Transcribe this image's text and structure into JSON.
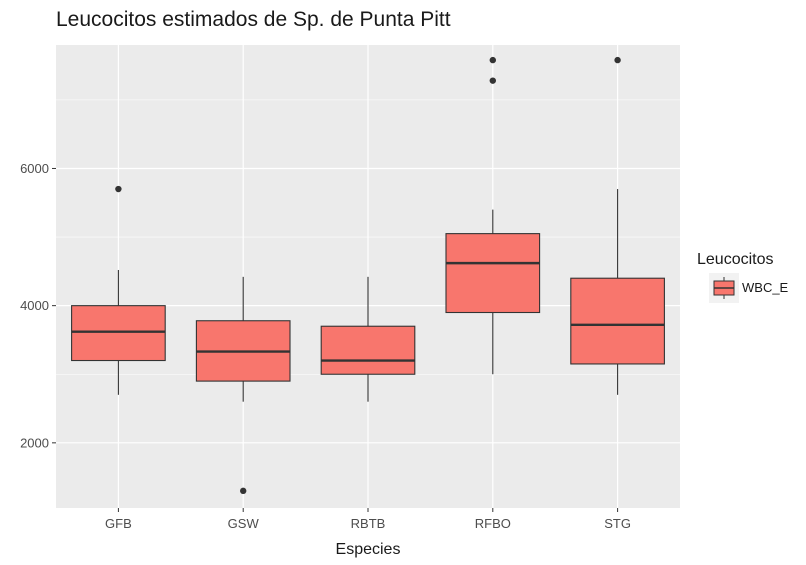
{
  "chart_data": {
    "type": "boxplot",
    "title": "Leucocitos estimados de Sp. de Punta Pitt",
    "xlabel": "Especies",
    "ylabel": "",
    "ylim": [
      1050,
      7800
    ],
    "yticks": [
      2000,
      4000,
      6000
    ],
    "ytick_labels": [
      "2000",
      "4000",
      "6000"
    ],
    "grid": true,
    "legend": {
      "title": "Leucocitos",
      "placement": "right",
      "entries": [
        "WBC_E"
      ]
    },
    "colors": {
      "fill": "#F8766D",
      "panel": "#EBEBEB",
      "grid": "#FFFFFF",
      "stroke": "#333333"
    },
    "series": [
      {
        "name": "WBC_E",
        "boxes": [
          {
            "category": "GFB",
            "min": 2700,
            "q1": 3200,
            "median": 3620,
            "q3": 4000,
            "max": 4520,
            "outliers": [
              5700
            ]
          },
          {
            "category": "GSW",
            "min": 2600,
            "q1": 2900,
            "median": 3330,
            "q3": 3780,
            "max": 4420,
            "outliers": [
              1300
            ]
          },
          {
            "category": "RBTB",
            "min": 2600,
            "q1": 3000,
            "median": 3200,
            "q3": 3700,
            "max": 4420,
            "outliers": []
          },
          {
            "category": "RFBO",
            "min": 3000,
            "q1": 3900,
            "median": 4620,
            "q3": 5050,
            "max": 5400,
            "outliers": [
              7280,
              7580
            ]
          },
          {
            "category": "STG",
            "min": 2700,
            "q1": 3150,
            "median": 3720,
            "q3": 4400,
            "max": 5700,
            "outliers": [
              7580
            ]
          }
        ]
      }
    ]
  }
}
